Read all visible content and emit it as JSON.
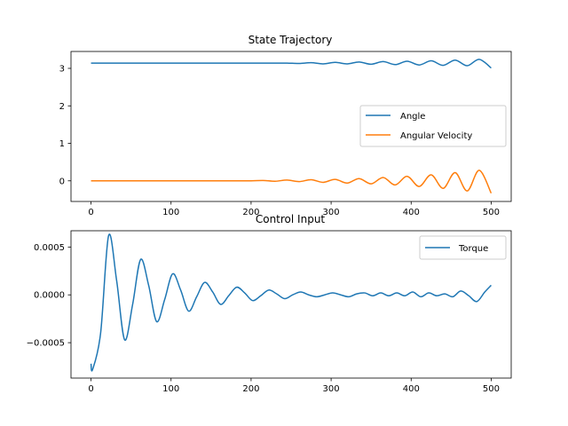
{
  "colors": {
    "angle": "#1f77b4",
    "angular_velocity": "#ff7f0e",
    "torque": "#1f77b4"
  },
  "chart_data": [
    {
      "type": "line",
      "title": "State Trajectory",
      "xlabel": "",
      "ylabel": "",
      "xlim": [
        -25,
        525
      ],
      "ylim": [
        -0.55,
        3.45
      ],
      "xticks": [
        0,
        100,
        200,
        300,
        400,
        500
      ],
      "yticks": [
        0,
        1,
        2,
        3
      ],
      "xtick_labels": [
        "0",
        "100",
        "200",
        "300",
        "400",
        "500"
      ],
      "ytick_labels": [
        "0",
        "1",
        "2",
        "3"
      ],
      "legend": {
        "placement": "center-right",
        "entries": [
          "Angle",
          "Angular Velocity"
        ]
      },
      "grid": false,
      "series": [
        {
          "name": "Angle",
          "x": [
            0,
            25,
            50,
            75,
            100,
            125,
            150,
            175,
            200,
            215,
            230,
            245,
            260,
            275,
            290,
            305,
            320,
            335,
            350,
            365,
            380,
            395,
            410,
            425,
            440,
            455,
            470,
            485,
            500
          ],
          "y": [
            3.14,
            3.14,
            3.14,
            3.14,
            3.14,
            3.14,
            3.14,
            3.14,
            3.14,
            3.14,
            3.14,
            3.14,
            3.13,
            3.15,
            3.12,
            3.16,
            3.12,
            3.17,
            3.11,
            3.18,
            3.1,
            3.19,
            3.09,
            3.2,
            3.08,
            3.22,
            3.07,
            3.24,
            3.01
          ]
        },
        {
          "name": "Angular Velocity",
          "x": [
            0,
            25,
            50,
            75,
            100,
            125,
            150,
            175,
            200,
            215,
            230,
            245,
            260,
            275,
            290,
            305,
            320,
            335,
            350,
            365,
            380,
            395,
            410,
            425,
            440,
            455,
            470,
            485,
            500
          ],
          "y": [
            0.0,
            0.0,
            0.0,
            0.0,
            0.0,
            0.0,
            0.0,
            0.0,
            0.0,
            0.01,
            -0.01,
            0.02,
            -0.02,
            0.03,
            -0.04,
            0.04,
            -0.06,
            0.06,
            -0.08,
            0.09,
            -0.11,
            0.12,
            -0.15,
            0.16,
            -0.2,
            0.22,
            -0.27,
            0.28,
            -0.33
          ]
        }
      ]
    },
    {
      "type": "line",
      "title": "Control Input",
      "xlabel": "",
      "ylabel": "",
      "xlim": [
        -25,
        525
      ],
      "ylim": [
        -0.00087,
        0.00067
      ],
      "xticks": [
        0,
        100,
        200,
        300,
        400,
        500
      ],
      "yticks": [
        -0.0005,
        0.0,
        0.0005
      ],
      "xtick_labels": [
        "0",
        "100",
        "200",
        "300",
        "400",
        "500"
      ],
      "ytick_labels": [
        "−0.0005",
        "0.0000",
        "0.0005"
      ],
      "legend": {
        "placement": "top-right",
        "entries": [
          "Torque"
        ]
      },
      "grid": false,
      "series": [
        {
          "name": "Torque",
          "x": [
            0,
            2,
            12,
            22,
            32,
            42,
            52,
            62,
            72,
            82,
            92,
            102,
            112,
            122,
            132,
            142,
            152,
            162,
            172,
            182,
            192,
            202,
            212,
            222,
            232,
            242,
            252,
            262,
            272,
            282,
            292,
            302,
            312,
            322,
            332,
            342,
            352,
            362,
            372,
            382,
            392,
            402,
            412,
            422,
            432,
            442,
            452,
            462,
            472,
            482,
            492,
            500
          ],
          "y": [
            -0.00072,
            -0.00078,
            -0.0004,
            0.00062,
            0.00015,
            -0.00047,
            -0.0001,
            0.00037,
            0.0001,
            -0.00028,
            -5e-05,
            0.00022,
            5e-05,
            -0.00017,
            -2e-05,
            0.00013,
            3e-05,
            -0.0001,
            -1e-05,
            8e-05,
            2e-05,
            -6e-05,
            -1e-05,
            5e-05,
            1e-05,
            -4e-05,
            0.0,
            3e-05,
            0.0,
            -2e-05,
            0.0,
            2e-05,
            0.0,
            -2e-05,
            1e-05,
            2e-05,
            -1e-05,
            2e-05,
            -1e-05,
            2e-05,
            -1e-05,
            3e-05,
            -2e-05,
            2e-05,
            -1e-05,
            1e-05,
            -2e-05,
            4e-05,
            -1e-05,
            -7e-05,
            3e-05,
            0.0001
          ]
        }
      ]
    }
  ]
}
